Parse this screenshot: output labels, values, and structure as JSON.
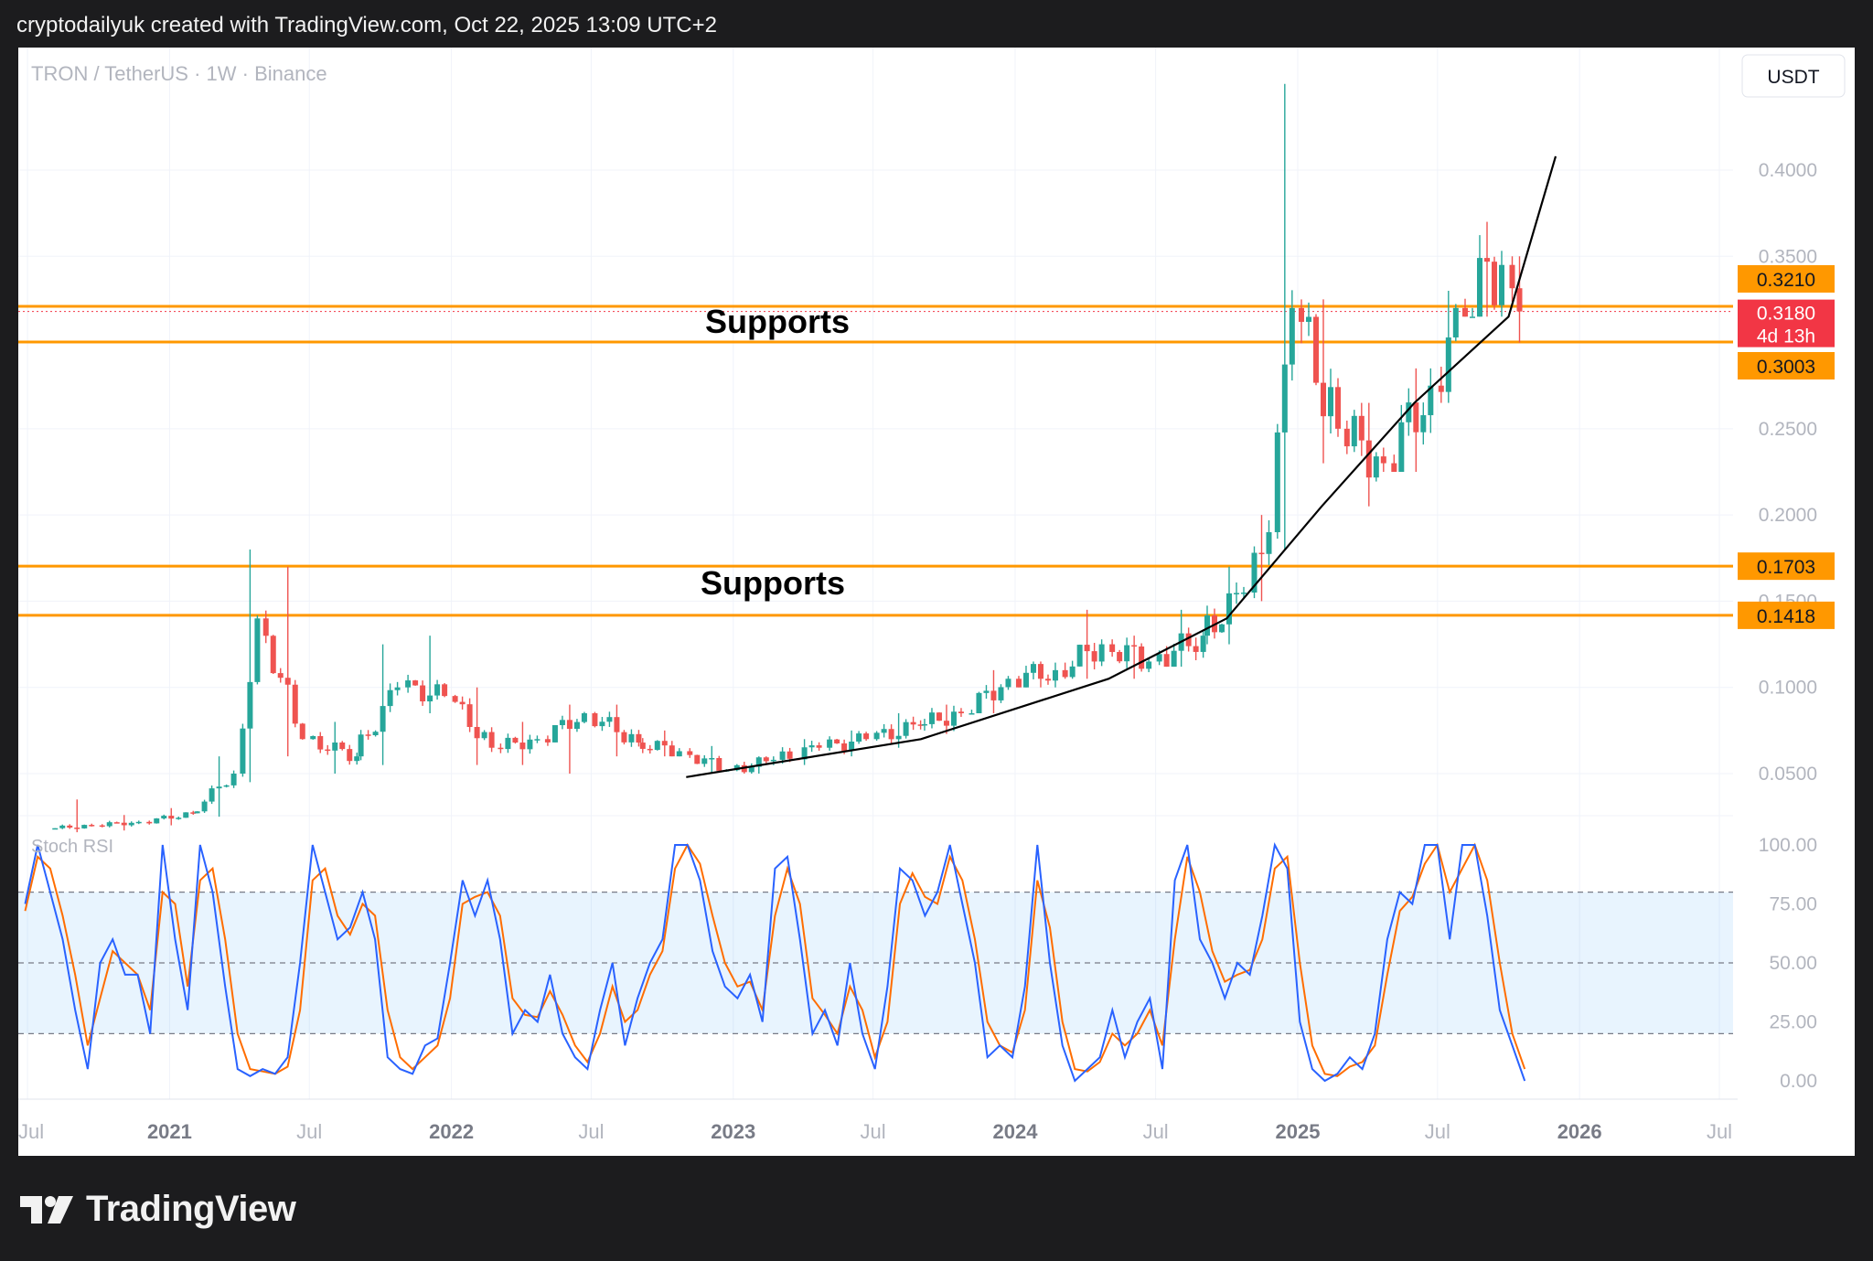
{
  "header": {
    "caption": "cryptodailyuk created with TradingView.com, Oct 22, 2025 13:09 UTC+2"
  },
  "chart": {
    "symbol_label": "TRON / TetherUS · 1W · Binance",
    "currency_button": "USDT",
    "indicator_label": "Stoch RSI"
  },
  "footer": {
    "brand": "TradingView"
  },
  "colors": {
    "up_candle": "#26a69a",
    "down_candle": "#ef5350",
    "support_line": "#ff9800",
    "trend_curve": "#000000",
    "stoch_k": "#2962ff",
    "stoch_d": "#ff6d00",
    "stoch_band": "#2196f3",
    "current_price_badge": "#f23645"
  },
  "chart_data": [
    {
      "type": "candlestick",
      "title": "TRON / TetherUS · 1W · Binance",
      "xlabel": "",
      "ylabel": "",
      "x_ticks": [
        "Jul",
        "2021",
        "Jul",
        "2022",
        "Jul",
        "2023",
        "Jul",
        "2024",
        "Jul",
        "2025",
        "Jul",
        "2026",
        "Jul"
      ],
      "y_ticks": [
        "0.0500",
        "0.1000",
        "0.1500",
        "0.2000",
        "0.2500",
        "0.3500",
        "0.4000"
      ],
      "ylim": [
        0.02,
        0.45
      ],
      "grid": true,
      "candles_sketch": [
        {
          "date": "2020-08",
          "open": 0.018,
          "high": 0.035,
          "low": 0.016,
          "close": 0.02
        },
        {
          "date": "2020-10",
          "open": 0.02,
          "high": 0.026,
          "low": 0.017,
          "close": 0.022
        },
        {
          "date": "2020-12",
          "open": 0.022,
          "high": 0.03,
          "low": 0.02,
          "close": 0.027
        },
        {
          "date": "2021-02",
          "open": 0.027,
          "high": 0.06,
          "low": 0.025,
          "close": 0.05
        },
        {
          "date": "2021-04",
          "open": 0.05,
          "high": 0.18,
          "low": 0.045,
          "close": 0.14
        },
        {
          "date": "2021-05",
          "open": 0.14,
          "high": 0.17,
          "low": 0.06,
          "close": 0.07
        },
        {
          "date": "2021-07",
          "open": 0.07,
          "high": 0.08,
          "low": 0.05,
          "close": 0.06
        },
        {
          "date": "2021-09",
          "open": 0.06,
          "high": 0.125,
          "low": 0.055,
          "close": 0.1
        },
        {
          "date": "2021-11",
          "open": 0.1,
          "high": 0.13,
          "low": 0.085,
          "close": 0.095
        },
        {
          "date": "2022-01",
          "open": 0.095,
          "high": 0.1,
          "low": 0.055,
          "close": 0.065
        },
        {
          "date": "2022-03",
          "open": 0.065,
          "high": 0.08,
          "low": 0.055,
          "close": 0.07
        },
        {
          "date": "2022-05",
          "open": 0.07,
          "high": 0.09,
          "low": 0.05,
          "close": 0.085
        },
        {
          "date": "2022-07",
          "open": 0.085,
          "high": 0.09,
          "low": 0.06,
          "close": 0.068
        },
        {
          "date": "2022-09",
          "open": 0.068,
          "high": 0.075,
          "low": 0.06,
          "close": 0.063
        },
        {
          "date": "2022-11",
          "open": 0.063,
          "high": 0.066,
          "low": 0.05,
          "close": 0.052
        },
        {
          "date": "2023-01",
          "open": 0.052,
          "high": 0.06,
          "low": 0.05,
          "close": 0.058
        },
        {
          "date": "2023-03",
          "open": 0.058,
          "high": 0.07,
          "low": 0.055,
          "close": 0.065
        },
        {
          "date": "2023-05",
          "open": 0.065,
          "high": 0.075,
          "low": 0.06,
          "close": 0.07
        },
        {
          "date": "2023-07",
          "open": 0.07,
          "high": 0.085,
          "low": 0.065,
          "close": 0.078
        },
        {
          "date": "2023-09",
          "open": 0.078,
          "high": 0.09,
          "low": 0.073,
          "close": 0.085
        },
        {
          "date": "2023-11",
          "open": 0.085,
          "high": 0.11,
          "low": 0.085,
          "close": 0.105
        },
        {
          "date": "2024-01",
          "open": 0.105,
          "high": 0.115,
          "low": 0.1,
          "close": 0.11
        },
        {
          "date": "2024-03",
          "open": 0.11,
          "high": 0.145,
          "low": 0.105,
          "close": 0.125
        },
        {
          "date": "2024-05",
          "open": 0.125,
          "high": 0.13,
          "low": 0.105,
          "close": 0.115
        },
        {
          "date": "2024-07",
          "open": 0.115,
          "high": 0.145,
          "low": 0.112,
          "close": 0.13
        },
        {
          "date": "2024-09",
          "open": 0.13,
          "high": 0.17,
          "low": 0.125,
          "close": 0.155
        },
        {
          "date": "2024-11",
          "open": 0.155,
          "high": 0.2,
          "low": 0.15,
          "close": 0.19
        },
        {
          "date": "2024-12",
          "open": 0.19,
          "high": 0.45,
          "low": 0.18,
          "close": 0.32
        },
        {
          "date": "2025-01",
          "open": 0.32,
          "high": 0.325,
          "low": 0.23,
          "close": 0.25
        },
        {
          "date": "2025-03",
          "open": 0.25,
          "high": 0.265,
          "low": 0.205,
          "close": 0.23
        },
        {
          "date": "2025-05",
          "open": 0.23,
          "high": 0.285,
          "low": 0.225,
          "close": 0.275
        },
        {
          "date": "2025-07",
          "open": 0.275,
          "high": 0.33,
          "low": 0.265,
          "close": 0.32
        },
        {
          "date": "2025-08",
          "open": 0.32,
          "high": 0.37,
          "low": 0.315,
          "close": 0.345
        },
        {
          "date": "2025-10",
          "open": 0.345,
          "high": 0.35,
          "low": 0.3,
          "close": 0.318
        }
      ],
      "annotations": [
        {
          "text": "Supports",
          "price_low": 0.3003,
          "price_high": 0.321
        },
        {
          "text": "Supports",
          "price_low": 0.1418,
          "price_high": 0.1703
        }
      ],
      "price_labels": [
        {
          "value": "0.3210"
        },
        {
          "value": "0.3180",
          "countdown": "4d 13h",
          "current": true
        },
        {
          "value": "0.3003"
        },
        {
          "value": "0.1703"
        },
        {
          "value": "0.1418"
        }
      ],
      "support_levels": [
        0.321,
        0.3003,
        0.1703,
        0.1418
      ],
      "trend_curve": [
        {
          "date": "2022-11",
          "value": 0.048
        },
        {
          "date": "2023-09",
          "value": 0.07
        },
        {
          "date": "2024-05",
          "value": 0.105
        },
        {
          "date": "2024-10",
          "value": 0.14
        },
        {
          "date": "2025-02",
          "value": 0.205
        },
        {
          "date": "2025-06",
          "value": 0.265
        },
        {
          "date": "2025-10",
          "value": 0.315
        },
        {
          "date": "2025-12",
          "value": 0.408
        }
      ]
    },
    {
      "type": "line",
      "title": "Stoch RSI",
      "y_ticks": [
        "0.00",
        "25.00",
        "50.00",
        "75.00",
        "100.00"
      ],
      "ylim": [
        0,
        100
      ],
      "bands": [
        20,
        50,
        80
      ],
      "series": [
        {
          "values": [
            75,
            100,
            80,
            60,
            30,
            5,
            50,
            60,
            45,
            45,
            20,
            100,
            60,
            30,
            100,
            80,
            40,
            5,
            2,
            5,
            3,
            10,
            50,
            100,
            80,
            60,
            65,
            80,
            60,
            10,
            5,
            3,
            15,
            18,
            50,
            85,
            70,
            85,
            60,
            20,
            30,
            25,
            45,
            20,
            10,
            5,
            30,
            50,
            15,
            35,
            50,
            60,
            100,
            100,
            85,
            55,
            40,
            35,
            45,
            25,
            90,
            95,
            60,
            20,
            30,
            15,
            50,
            20,
            5,
            40,
            90,
            85,
            70,
            80,
            100,
            75,
            50,
            10,
            15,
            10,
            40,
            100,
            50,
            15,
            0,
            5,
            10,
            30,
            10,
            25,
            35,
            5,
            85,
            100,
            60,
            50,
            35,
            50,
            45,
            70,
            100,
            90,
            25,
            5,
            0,
            3,
            10,
            5,
            20,
            60,
            80,
            75,
            100,
            100,
            60,
            100,
            100,
            70,
            30,
            15,
            0
          ]
        },
        {
          "values": [
            72,
            95,
            90,
            70,
            45,
            15,
            35,
            55,
            50,
            45,
            30,
            80,
            75,
            40,
            85,
            90,
            60,
            20,
            5,
            4,
            3,
            6,
            30,
            85,
            90,
            70,
            62,
            75,
            70,
            30,
            10,
            5,
            10,
            15,
            35,
            75,
            78,
            80,
            70,
            35,
            28,
            27,
            38,
            28,
            15,
            8,
            20,
            40,
            25,
            30,
            45,
            55,
            90,
            100,
            92,
            70,
            50,
            40,
            42,
            30,
            70,
            90,
            75,
            35,
            28,
            20,
            40,
            30,
            10,
            25,
            75,
            88,
            78,
            75,
            95,
            85,
            60,
            25,
            15,
            12,
            30,
            85,
            65,
            25,
            5,
            4,
            8,
            20,
            15,
            20,
            30,
            15,
            60,
            95,
            80,
            55,
            42,
            45,
            47,
            60,
            90,
            95,
            50,
            15,
            3,
            2,
            6,
            8,
            15,
            45,
            72,
            78,
            92,
            100,
            80,
            90,
            100,
            85,
            50,
            20,
            5
          ]
        }
      ]
    }
  ]
}
